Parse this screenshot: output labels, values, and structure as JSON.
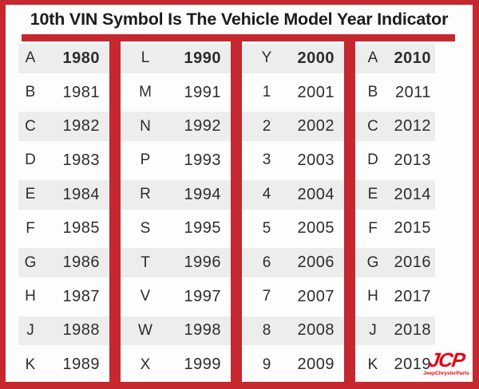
{
  "title": "10th VIN Symbol Is The Vehicle Model Year Indicator",
  "chart_data": {
    "type": "table",
    "title": "10th VIN Symbol Is The Vehicle Model Year Indicator",
    "columns": [
      {
        "rows": [
          {
            "symbol": "A",
            "year": "1980"
          },
          {
            "symbol": "B",
            "year": "1981"
          },
          {
            "symbol": "C",
            "year": "1982"
          },
          {
            "symbol": "D",
            "year": "1983"
          },
          {
            "symbol": "E",
            "year": "1984"
          },
          {
            "symbol": "F",
            "year": "1985"
          },
          {
            "symbol": "G",
            "year": "1986"
          },
          {
            "symbol": "H",
            "year": "1987"
          },
          {
            "symbol": "J",
            "year": "1988"
          },
          {
            "symbol": "K",
            "year": "1989"
          }
        ]
      },
      {
        "rows": [
          {
            "symbol": "L",
            "year": "1990"
          },
          {
            "symbol": "M",
            "year": "1991"
          },
          {
            "symbol": "N",
            "year": "1992"
          },
          {
            "symbol": "P",
            "year": "1993"
          },
          {
            "symbol": "R",
            "year": "1994"
          },
          {
            "symbol": "S",
            "year": "1995"
          },
          {
            "symbol": "T",
            "year": "1996"
          },
          {
            "symbol": "V",
            "year": "1997"
          },
          {
            "symbol": "W",
            "year": "1998"
          },
          {
            "symbol": "X",
            "year": "1999"
          }
        ]
      },
      {
        "rows": [
          {
            "symbol": "Y",
            "year": "2000"
          },
          {
            "symbol": "1",
            "year": "2001"
          },
          {
            "symbol": "2",
            "year": "2002"
          },
          {
            "symbol": "3",
            "year": "2003"
          },
          {
            "symbol": "4",
            "year": "2004"
          },
          {
            "symbol": "5",
            "year": "2005"
          },
          {
            "symbol": "6",
            "year": "2006"
          },
          {
            "symbol": "7",
            "year": "2007"
          },
          {
            "symbol": "8",
            "year": "2008"
          },
          {
            "symbol": "9",
            "year": "2009"
          }
        ]
      },
      {
        "rows": [
          {
            "symbol": "A",
            "year": "2010"
          },
          {
            "symbol": "B",
            "year": "2011"
          },
          {
            "symbol": "C",
            "year": "2012"
          },
          {
            "symbol": "D",
            "year": "2013"
          },
          {
            "symbol": "E",
            "year": "2014"
          },
          {
            "symbol": "F",
            "year": "2015"
          },
          {
            "symbol": "G",
            "year": "2016"
          },
          {
            "symbol": "H",
            "year": "2017"
          },
          {
            "symbol": "J",
            "year": "2018"
          },
          {
            "symbol": "K",
            "year": "2019"
          }
        ]
      }
    ]
  },
  "logo": {
    "text": "JCP",
    "subtext": "JeepChryslerParts"
  },
  "colors": {
    "accent_red": "#c5282f",
    "row_alt": "#ededed",
    "logo_red": "#e30613"
  }
}
